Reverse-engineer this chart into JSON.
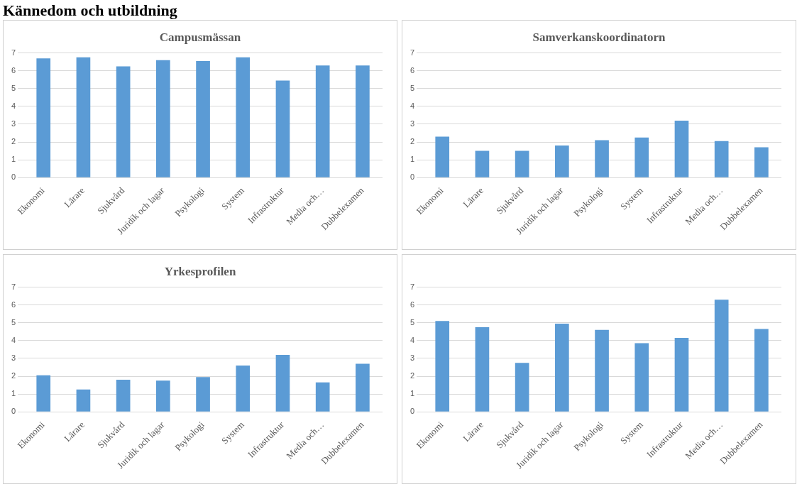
{
  "chart_data": [
    {
      "type": "bar",
      "title": "Campusmässan",
      "annotations": [
        "Kännedom och utbildning"
      ],
      "categories": [
        "Ekonomi",
        "Lärare",
        "Sjukvård",
        "Juridik och lagar",
        "Psykologi",
        "System",
        "Infrastruktur",
        "Media och…",
        "Dubbelexamen"
      ],
      "values": [
        6.7,
        6.75,
        6.25,
        6.6,
        6.55,
        6.75,
        5.45,
        6.3,
        6.3
      ],
      "color": "#5b9bd5",
      "ylim": [
        0,
        7
      ],
      "yticks": [
        0,
        1,
        2,
        3,
        4,
        5,
        6,
        7
      ],
      "grid": "y"
    },
    {
      "type": "bar",
      "title": "Samverkanskoordinatorn",
      "categories": [
        "Ekonomi",
        "Lärare",
        "Sjukvård",
        "Juridik och lagar",
        "Psykologi",
        "System",
        "Infrastruktur",
        "Media och…",
        "Dubbelexamen"
      ],
      "values": [
        2.3,
        1.5,
        1.5,
        1.8,
        2.1,
        2.25,
        3.2,
        2.05,
        1.7
      ],
      "color": "#5b9bd5",
      "ylim": [
        0,
        7
      ],
      "yticks": [
        0,
        1,
        2,
        3,
        4,
        5,
        6,
        7
      ],
      "grid": "y"
    },
    {
      "type": "bar",
      "title": "Yrkesprofilen",
      "categories": [
        "Ekonomi",
        "Lärare",
        "Sjukvård",
        "Juridik och lagar",
        "Psykologi",
        "System",
        "Infrastruktur",
        "Media och…",
        "Dubbelexamen"
      ],
      "values": [
        2.05,
        1.25,
        1.8,
        1.75,
        1.95,
        2.6,
        3.2,
        1.65,
        2.7
      ],
      "color": "#5b9bd5",
      "ylim": [
        0,
        7
      ],
      "yticks": [
        0,
        1,
        2,
        3,
        4,
        5,
        6,
        7
      ],
      "grid": "y"
    },
    {
      "type": "bar",
      "categories": [
        "Ekonomi",
        "Lärare",
        "Sjukvård",
        "Juridik och lagar",
        "Psykologi",
        "System",
        "Infrastruktur",
        "Media och…",
        "Dubbelexamen"
      ],
      "values": [
        5.1,
        4.75,
        2.75,
        4.95,
        4.6,
        3.85,
        4.15,
        6.3,
        4.65
      ],
      "color": "#5b9bd5",
      "ylim": [
        0,
        7
      ],
      "yticks": [
        0,
        1,
        2,
        3,
        4,
        5,
        6,
        7
      ],
      "grid": "y"
    }
  ]
}
